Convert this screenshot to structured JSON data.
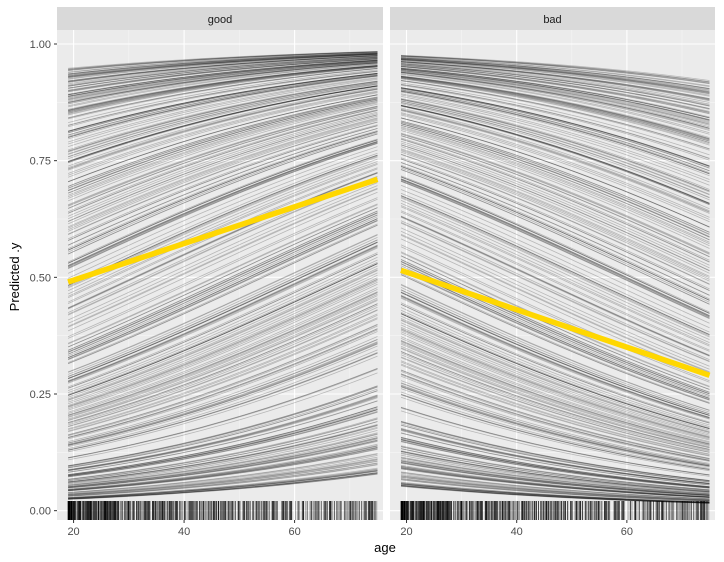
{
  "chart_data": {
    "type": "line",
    "title": "",
    "xlabel": "age",
    "ylabel": "Predicted .y",
    "xlim": [
      17,
      76
    ],
    "ylim": [
      -0.02,
      1.03
    ],
    "x_ticks": [
      20,
      40,
      60
    ],
    "y_ticks": [
      0.0,
      0.25,
      0.5,
      0.75,
      1.0
    ],
    "y_tick_labels": [
      "0.00",
      "0.25",
      "0.50",
      "0.75",
      "1.00"
    ],
    "grid": true,
    "individual_curve_count": 400,
    "x_range_of_curves": [
      19,
      75
    ],
    "rug": true,
    "colors": {
      "panel_bg": "#ebebeb",
      "strip_bg": "#d9d9d9",
      "grid_major": "#ffffff",
      "curves": "#000000",
      "average": "#ffd700"
    },
    "facets": [
      {
        "label": "good",
        "average_curve": {
          "x": [
            19,
            75
          ],
          "y": [
            0.49,
            0.71
          ]
        },
        "individual_curve_slope": 0.022,
        "baseline_logit_range": [
          -3.7,
          2.9
        ]
      },
      {
        "label": "bad",
        "average_curve": {
          "x": [
            19,
            75
          ],
          "y": [
            0.515,
            0.29
          ]
        },
        "individual_curve_slope": -0.022,
        "baseline_logit_range": [
          -2.9,
          3.7
        ]
      }
    ]
  }
}
